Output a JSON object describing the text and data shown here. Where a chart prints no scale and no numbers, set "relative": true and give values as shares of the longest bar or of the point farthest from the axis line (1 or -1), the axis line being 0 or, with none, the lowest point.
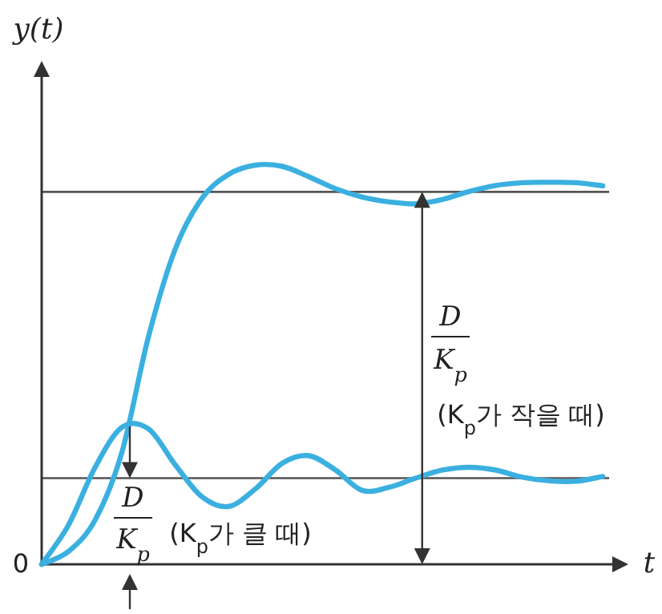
{
  "chart_data": {
    "type": "line",
    "relative": true,
    "xlabel": "t",
    "ylabel": "y(t)",
    "categories": [
      null,
      null,
      null,
      null,
      null,
      null,
      null,
      null,
      null,
      null,
      null,
      null,
      null,
      null,
      null,
      null,
      null,
      null,
      null,
      null,
      null,
      null
    ],
    "series": [
      {
        "color": "#3bb0e0",
        "values": [
          0,
          0.032,
          0.111,
          0.28,
          0.571,
          0.79,
          0.917,
          0.977,
          1,
          0.997,
          0.971,
          0.941,
          0.92,
          0.908,
          0.903,
          0.914,
          0.934,
          0.949,
          0.956,
          0.957,
          0.956,
          0.948
        ]
      },
      {
        "color": "#3bb0e0",
        "values": [
          0,
          0.098,
          0.243,
          0.343,
          0.339,
          0.249,
          0.169,
          0.145,
          0.189,
          0.253,
          0.272,
          0.236,
          0.185,
          0.193,
          0.216,
          0.236,
          0.243,
          0.236,
          0.218,
          0.209,
          0.208,
          0.22
        ]
      }
    ],
    "ref_lines": [
      {
        "axis": "y",
        "value": 0.933,
        "color": "#555555"
      },
      {
        "axis": "y",
        "value": 0.216,
        "color": "#555555"
      }
    ],
    "annotations": [
      "D",
      "K$_{p}$",
      "(K$_{p}$가 작을 때)",
      "D",
      "K$_{p}$",
      "(K$_{p}$가 클 때)",
      "0"
    ]
  }
}
